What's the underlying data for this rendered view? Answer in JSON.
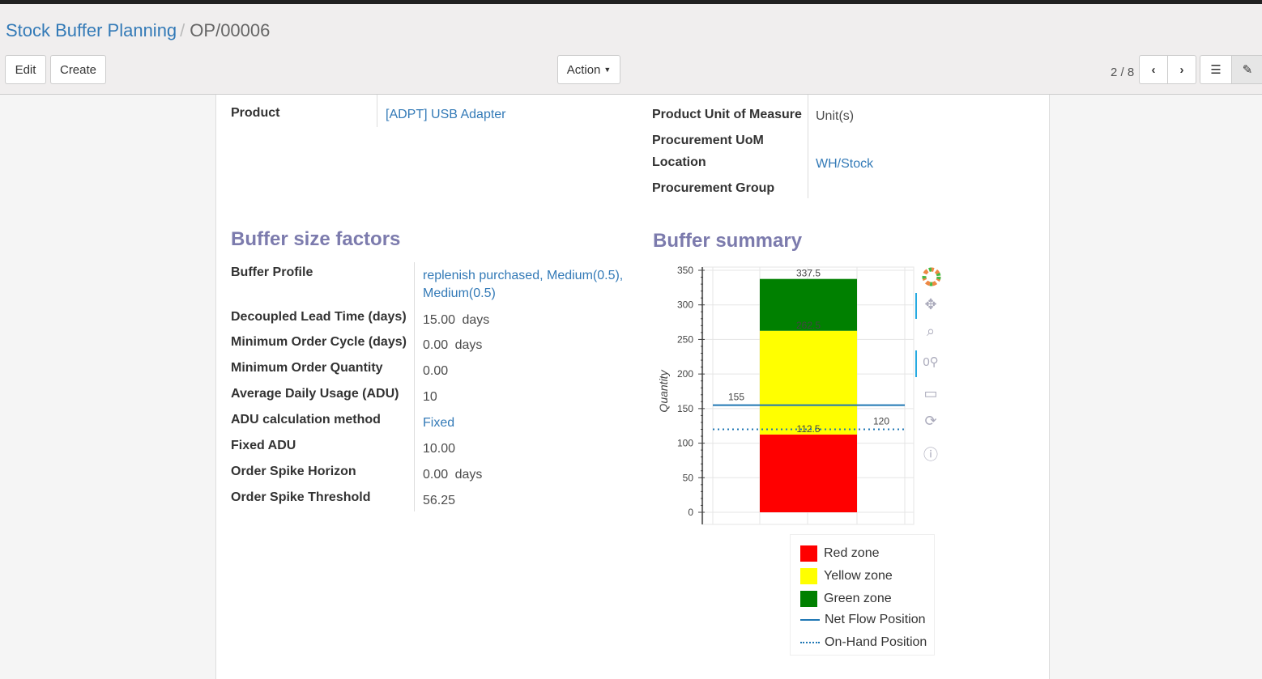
{
  "breadcrumb": {
    "parent": "Stock Buffer Planning",
    "current": "OP/00006"
  },
  "buttons": {
    "edit": "Edit",
    "create": "Create",
    "action": "Action"
  },
  "pager": "2 / 8",
  "fields": {
    "product_label": "Product",
    "product_value": "[ADPT] USB Adapter",
    "uom_label": "Product Unit of Measure",
    "uom_value": "Unit(s)",
    "proc_uom_label": "Procurement UoM",
    "location_label": "Location",
    "location_value": "WH/Stock",
    "proc_group_label": "Procurement Group"
  },
  "factors": {
    "title": "Buffer size factors",
    "rows": [
      {
        "label": "Buffer Profile",
        "value": "replenish purchased, Medium(0.5), Medium(0.5)",
        "link": true
      },
      {
        "label": "Decoupled Lead Time (days)",
        "value": "15.00",
        "unit": "days"
      },
      {
        "label": "Minimum Order Cycle (days)",
        "value": "0.00",
        "unit": "days"
      },
      {
        "label": "Minimum Order Quantity",
        "value": "0.00"
      },
      {
        "label": "Average Daily Usage (ADU)",
        "value": "10"
      },
      {
        "label": "ADU calculation method",
        "value": "Fixed",
        "link": true
      },
      {
        "label": "Fixed ADU",
        "value": "10.00"
      },
      {
        "label": "Order Spike Horizon",
        "value": "0.00",
        "unit": "days"
      },
      {
        "label": "Order Spike Threshold",
        "value": "56.25"
      }
    ]
  },
  "summary": {
    "title": "Buffer summary"
  },
  "chart_data": {
    "type": "bar",
    "stacked": true,
    "ylabel": "Quantity",
    "ylim": [
      0,
      350
    ],
    "yticks": [
      0,
      50,
      100,
      150,
      200,
      250,
      300,
      350
    ],
    "grid": true,
    "series": [
      {
        "name": "Red zone",
        "from": 0,
        "to": 112.5,
        "color": "#ff0000",
        "label": "112.5"
      },
      {
        "name": "Yellow zone",
        "from": 112.5,
        "to": 262.5,
        "color": "#ffff00",
        "label": "262.5"
      },
      {
        "name": "Green zone",
        "from": 262.5,
        "to": 337.5,
        "color": "#008000",
        "label": "337.5"
      }
    ],
    "lines": [
      {
        "name": "Net Flow Position",
        "value": 155,
        "label": "155",
        "style": "solid",
        "color": "#1f77b4"
      },
      {
        "name": "On-Hand Position",
        "value": 120,
        "label": "120",
        "style": "dotted",
        "color": "#1f77b4"
      }
    ],
    "legend_position": "bottom"
  }
}
